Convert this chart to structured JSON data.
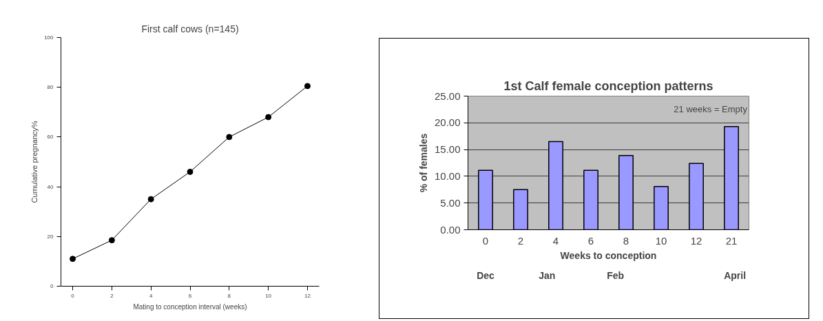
{
  "chart_data": [
    {
      "type": "line",
      "title": "First calf cows (n=145)",
      "xlabel": "Mating to conception interval (weeks)",
      "ylabel": "Cumulative pregnancy%",
      "x": [
        0,
        2,
        4,
        6,
        8,
        10,
        12
      ],
      "values": [
        11,
        18.5,
        35,
        46,
        60,
        68,
        80.5
      ],
      "color": "#000000",
      "xlim": [
        -0.6,
        12.6
      ],
      "ylim": [
        0,
        100
      ],
      "xticks": [
        0,
        2,
        4,
        6,
        8,
        10,
        12
      ],
      "yticks": [
        0,
        20,
        40,
        60,
        80,
        100
      ],
      "grid": false,
      "marker": "circle",
      "line_style": "solid"
    },
    {
      "type": "bar",
      "title": "1st Calf female conception patterns",
      "xlabel": "Weeks to conception",
      "ylabel": "% of females",
      "categories": [
        "0",
        "2",
        "4",
        "6",
        "8",
        "10",
        "12",
        "21"
      ],
      "values": [
        11.1,
        7.5,
        16.5,
        11.1,
        13.9,
        8.1,
        12.4,
        19.3
      ],
      "color": "#9999ff",
      "ylim": [
        0,
        25
      ],
      "yticks": [
        {
          "value": 0,
          "label": "0.00"
        },
        {
          "value": 5,
          "label": "5.00"
        },
        {
          "value": 10,
          "label": "10.00"
        },
        {
          "value": 15,
          "label": "15.00"
        },
        {
          "value": 20,
          "label": "20.00"
        },
        {
          "value": 25,
          "label": "25.00"
        }
      ],
      "grid": "y",
      "annotations": [
        "21 weeks = Empty",
        "Dec",
        "Jan",
        "Feb",
        "April"
      ]
    }
  ]
}
